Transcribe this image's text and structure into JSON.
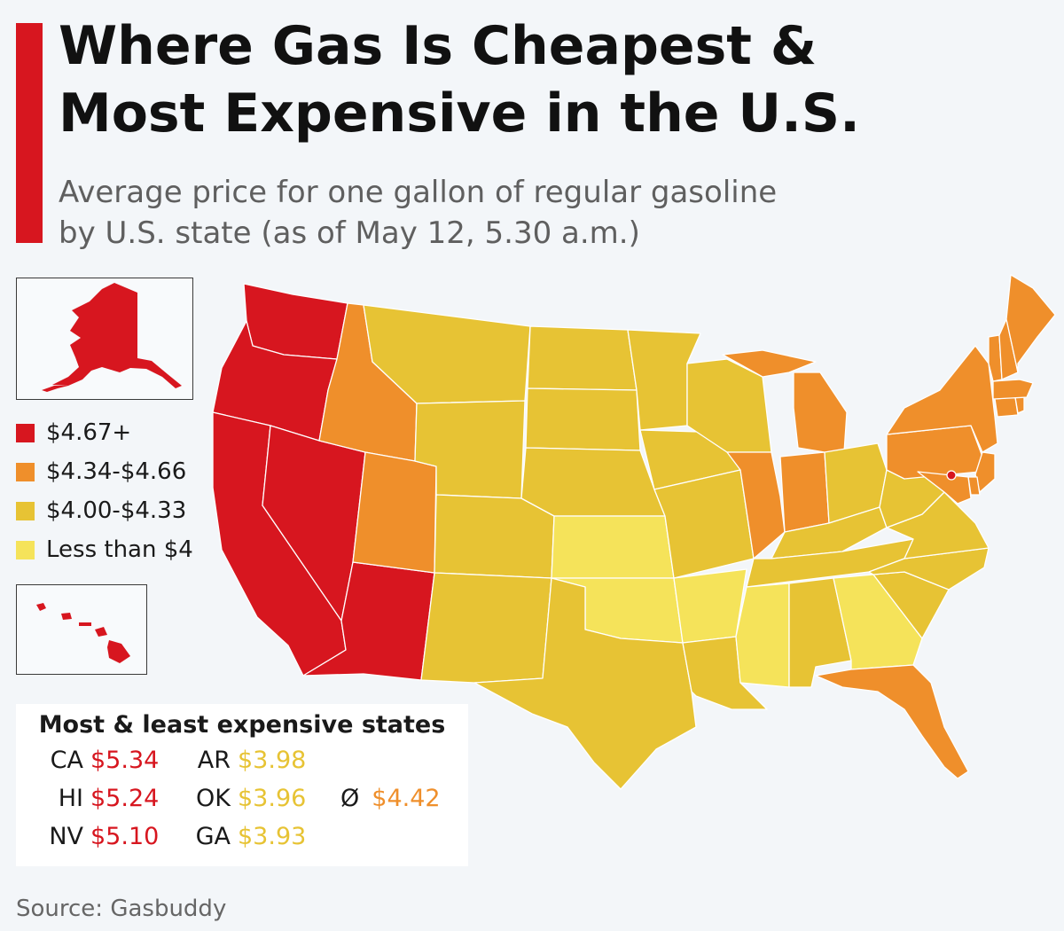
{
  "header": {
    "title_line1": "Where Gas Is Cheapest &",
    "title_line2": "Most Expensive in the U.S.",
    "subtitle_line1": "Average price for one gallon of regular gasoline",
    "subtitle_line2": "by U.S. state (as of May 12, 5.30 a.m.)"
  },
  "colors": {
    "accent": "#d7161f",
    "tier_red": "#d7161f",
    "tier_orange": "#ef8f2b",
    "tier_mustard": "#e7c334",
    "tier_yellow": "#f5e35a"
  },
  "legend": [
    {
      "label": "$4.67+",
      "color": "#d7161f"
    },
    {
      "label": "$4.34-$4.66",
      "color": "#ef8f2b"
    },
    {
      "label": "$4.00-$4.33",
      "color": "#e7c334"
    },
    {
      "label": "Less than $4",
      "color": "#f5e35a"
    }
  ],
  "map": {
    "states": {
      "WA": "$4.67+",
      "OR": "$4.67+",
      "CA": "$4.67+",
      "NV": "$4.67+",
      "AZ": "$4.67+",
      "AK": "$4.67+",
      "HI": "$4.67+",
      "DC": "$4.67+",
      "ID": "$4.34-$4.66",
      "UT": "$4.34-$4.66",
      "IL": "$4.34-$4.66",
      "IN": "$4.34-$4.66",
      "MI": "$4.34-$4.66",
      "PA": "$4.34-$4.66",
      "NY": "$4.34-$4.66",
      "NJ": "$4.34-$4.66",
      "CT": "$4.34-$4.66",
      "RI": "$4.34-$4.66",
      "MA": "$4.34-$4.66",
      "VT": "$4.34-$4.66",
      "NH": "$4.34-$4.66",
      "ME": "$4.34-$4.66",
      "FL": "$4.34-$4.66",
      "MD": "$4.34-$4.66",
      "DE": "$4.34-$4.66",
      "MT": "$4.00-$4.33",
      "WY": "$4.00-$4.33",
      "CO": "$4.00-$4.33",
      "NM": "$4.00-$4.33",
      "ND": "$4.00-$4.33",
      "SD": "$4.00-$4.33",
      "NE": "$4.00-$4.33",
      "TX": "$4.00-$4.33",
      "MN": "$4.00-$4.33",
      "IA": "$4.00-$4.33",
      "MO": "$4.00-$4.33",
      "WI": "$4.00-$4.33",
      "LA": "$4.00-$4.33",
      "AL": "$4.00-$4.33",
      "TN": "$4.00-$4.33",
      "KY": "$4.00-$4.33",
      "OH": "$4.00-$4.33",
      "WV": "$4.00-$4.33",
      "VA": "$4.00-$4.33",
      "NC": "$4.00-$4.33",
      "SC": "$4.00-$4.33",
      "KS": "Less than $4",
      "OK": "Less than $4",
      "AR": "Less than $4",
      "MS": "Less than $4",
      "GA": "Less than $4"
    }
  },
  "rankings": {
    "title": "Most & least expensive states",
    "most": [
      {
        "code": "CA",
        "price": "$5.34"
      },
      {
        "code": "HI",
        "price": "$5.24"
      },
      {
        "code": "NV",
        "price": "$5.10"
      }
    ],
    "least": [
      {
        "code": "AR",
        "price": "$3.98"
      },
      {
        "code": "OK",
        "price": "$3.96"
      },
      {
        "code": "GA",
        "price": "$3.93"
      }
    ],
    "average": {
      "symbol": "Ø",
      "price": "$4.42"
    }
  },
  "source": "Source: Gasbuddy"
}
